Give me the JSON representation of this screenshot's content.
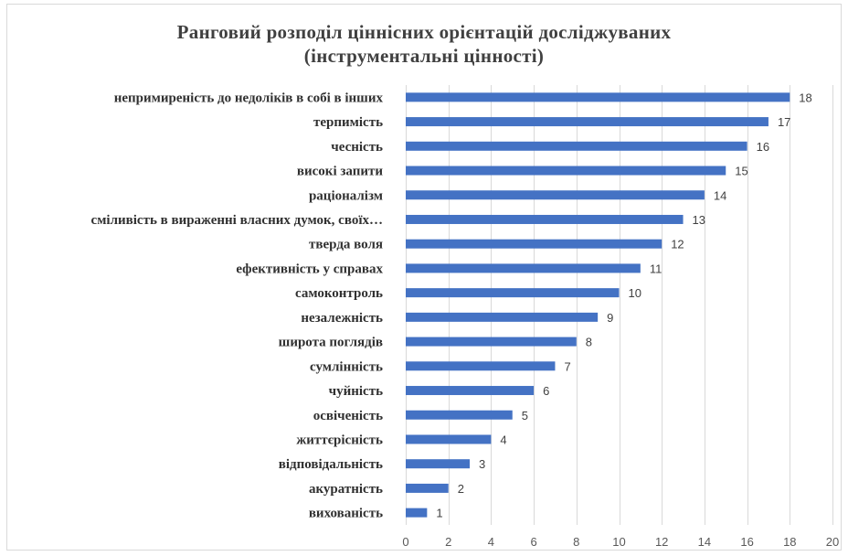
{
  "chart_data": {
    "type": "bar",
    "orientation": "horizontal",
    "title": "Ранговий розподіл ціннісних орієнтацій досліджуваних",
    "subtitle": "(інструментальні цінності)",
    "categories": [
      "непримиреність до недоліків в собі в інших",
      "терпимість",
      "чесність",
      "високі запити",
      "раціоналізм",
      "сміливість в вираженні власних думок, своїх…",
      "тверда воля",
      "ефективність у справах",
      "самоконтроль",
      "незалежність",
      "широта поглядів",
      "сумлінність",
      "чуйність",
      "освіченість",
      "життєрісність",
      "відповідальність",
      "акуратність",
      "вихованість"
    ],
    "values": [
      18,
      17,
      16,
      15,
      14,
      13,
      12,
      11,
      10,
      9,
      8,
      7,
      6,
      5,
      4,
      3,
      2,
      1
    ],
    "xlim": [
      0,
      20
    ],
    "xticks": [
      0,
      2,
      4,
      6,
      8,
      10,
      12,
      14,
      16,
      18,
      20
    ],
    "grid": "vertical",
    "bar_color": "#4472c4",
    "grid_color": "#d9d9d9",
    "legend": "none"
  }
}
